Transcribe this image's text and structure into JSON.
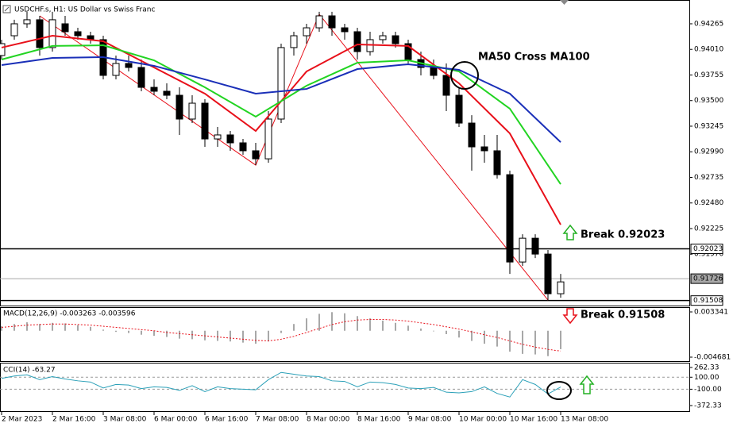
{
  "title": "USDCHF.s, H1:  US Dollar vs Swiss Franc",
  "annotations": [
    "MA50 Cross MA100",
    "Break 0.92023",
    "Break 0.91508"
  ],
  "chart_data": [
    {
      "type": "candlestick",
      "categories": [
        "2 Mar 2023",
        null,
        null,
        null,
        "2 Mar 16:00",
        null,
        null,
        null,
        "3 Mar 08:00",
        null,
        null,
        null,
        "6 Mar 00:00",
        null,
        null,
        null,
        "6 Mar 16:00",
        null,
        null,
        null,
        "7 Mar 08:00",
        null,
        null,
        null,
        "8 Mar 00:00",
        null,
        null,
        null,
        "8 Mar 16:00",
        null,
        null,
        null,
        "9 Mar 08:00",
        null,
        null,
        null,
        "10 Mar 00:00",
        null,
        null,
        null,
        "10 Mar 16:00",
        null,
        null,
        null,
        "13 Mar 08:00"
      ],
      "ohlc": [
        [
          0.93949,
          0.94107,
          0.93909,
          0.94067
        ],
        [
          0.94146,
          0.94305,
          0.94107,
          0.94265
        ],
        [
          0.94265,
          0.94384,
          0.94225,
          0.94305
        ],
        [
          0.94305,
          0.94344,
          0.93949,
          0.94028
        ],
        [
          0.94028,
          0.94384,
          0.93988,
          0.94305
        ],
        [
          0.94265,
          0.94344,
          0.94146,
          0.94186
        ],
        [
          0.94186,
          0.94225,
          0.94107,
          0.94146
        ],
        [
          0.94146,
          0.94186,
          0.94067,
          0.94107
        ],
        [
          0.94107,
          0.94146,
          0.93711,
          0.93751
        ],
        [
          0.93751,
          0.93949,
          0.93711,
          0.9387
        ],
        [
          0.9387,
          0.93949,
          0.9379,
          0.9383
        ],
        [
          0.9383,
          0.93909,
          0.93593,
          0.93632
        ],
        [
          0.93632,
          0.93711,
          0.93553,
          0.93593
        ],
        [
          0.93593,
          0.93672,
          0.93514,
          0.93553
        ],
        [
          0.93553,
          0.93632,
          0.93158,
          0.93316
        ],
        [
          0.93316,
          0.93553,
          0.93276,
          0.93474
        ],
        [
          0.93474,
          0.93514,
          0.93039,
          0.93118
        ],
        [
          0.93118,
          0.93237,
          0.93039,
          0.93158
        ],
        [
          0.93158,
          0.93197,
          0.93,
          0.93079
        ],
        [
          0.93079,
          0.93118,
          0.9296,
          0.93
        ],
        [
          0.93,
          0.93079,
          0.92857,
          0.9292
        ],
        [
          0.9292,
          0.93395,
          0.92881,
          0.93316
        ],
        [
          0.93316,
          0.94067,
          0.93276,
          0.94028
        ],
        [
          0.94028,
          0.94186,
          0.93949,
          0.94146
        ],
        [
          0.94146,
          0.94265,
          0.94067,
          0.94225
        ],
        [
          0.94225,
          0.94384,
          0.94186,
          0.94344
        ],
        [
          0.94344,
          0.94384,
          0.94146,
          0.94225
        ],
        [
          0.94225,
          0.94265,
          0.94107,
          0.94186
        ],
        [
          0.94186,
          0.94225,
          0.93909,
          0.93988
        ],
        [
          0.93988,
          0.94186,
          0.93949,
          0.94107
        ],
        [
          0.94107,
          0.94186,
          0.94067,
          0.94146
        ],
        [
          0.94146,
          0.94186,
          0.94028,
          0.94067
        ],
        [
          0.94067,
          0.94107,
          0.9387,
          0.93909
        ],
        [
          0.93909,
          0.93988,
          0.93751,
          0.9383
        ],
        [
          0.9383,
          0.93909,
          0.93711,
          0.93751
        ],
        [
          0.93751,
          0.9387,
          0.93395,
          0.93553
        ],
        [
          0.93553,
          0.93632,
          0.93237,
          0.93276
        ],
        [
          0.93276,
          0.93355,
          0.92802,
          0.93039
        ],
        [
          0.93039,
          0.93158,
          0.92881,
          0.93
        ],
        [
          0.93,
          0.93158,
          0.92723,
          0.92762
        ],
        [
          0.92762,
          0.92802,
          0.91773,
          0.91892
        ],
        [
          0.91892,
          0.92169,
          0.91852,
          0.92129
        ],
        [
          0.92129,
          0.92169,
          0.91931,
          0.91971
        ],
        [
          0.91971,
          0.92011,
          0.91513,
          0.91576
        ],
        [
          0.91576,
          0.91773,
          0.91536,
          0.91694
        ]
      ],
      "up_color": "#ffffff",
      "down_color": "#000000",
      "outline_color": "#000000",
      "lines": [
        {
          "color": "#e8101a",
          "x": [
            0,
            4,
            8,
            12,
            16,
            20,
            24,
            28,
            32,
            36,
            40,
            44
          ],
          "values": [
            0.94028,
            0.94146,
            0.94091,
            0.9383,
            0.93569,
            0.93197,
            0.9379,
            0.94059,
            0.94044,
            0.93672,
            0.93173,
            0.92264
          ]
        },
        {
          "color": "#22d422",
          "x": [
            0,
            4,
            8,
            12,
            16,
            20,
            24,
            28,
            32,
            36,
            40,
            44
          ],
          "values": [
            0.93909,
            0.94044,
            0.94051,
            0.93901,
            0.93632,
            0.9334,
            0.93648,
            0.93877,
            0.93901,
            0.9379,
            0.93419,
            0.92667
          ]
        },
        {
          "color": "#1a2fb8",
          "x": [
            0,
            4,
            8,
            12,
            16,
            20,
            24,
            28,
            32,
            36,
            40,
            44
          ],
          "values": [
            0.93854,
            0.93925,
            0.93933,
            0.93846,
            0.93711,
            0.93569,
            0.93616,
            0.93814,
            0.93862,
            0.93806,
            0.93569,
            0.93086
          ]
        }
      ],
      "trendline": {
        "color": "#e8101a",
        "x": [
          3,
          20,
          25,
          43
        ],
        "values": [
          0.94344,
          0.92857,
          0.9436,
          0.91513
        ]
      },
      "hlines": [
        {
          "value": 0.92023,
          "color": "#000000"
        },
        {
          "value": 0.91726,
          "color": "#a8a8a8"
        },
        {
          "value": 0.91508,
          "color": "#000000"
        }
      ],
      "ylim": [
        0.91458,
        0.94502
      ],
      "yticks": [
        0.94265,
        {
          "value": 0.9401,
          "label": "0.94010"
        },
        0.93755,
        {
          "value": 0.935,
          "label": "0.93500"
        },
        0.93245,
        {
          "value": 0.9299,
          "label": "0.92990"
        },
        0.92735,
        {
          "value": 0.9248,
          "label": "0.92480"
        },
        0.92225,
        {
          "value": 0.9197,
          "label": "0.91970"
        }
      ]
    },
    {
      "type": "macd",
      "label": "MACD(12,26,9) -0.003263 -0.003596",
      "values": [
        0.0008,
        0.0012,
        0.0015,
        0.0012,
        0.0014,
        0.0013,
        0.001,
        0.0007,
        0.0002,
        -0.0002,
        -0.0004,
        -0.0007,
        -0.0009,
        -0.0011,
        -0.0014,
        -0.0015,
        -0.0017,
        -0.0018,
        -0.0019,
        -0.0021,
        -0.0023,
        -0.0019,
        -0.0004,
        0.0012,
        0.0022,
        0.003,
        0.0033,
        0.0031,
        0.0026,
        0.0022,
        0.0018,
        0.0014,
        0.0009,
        0.0004,
        -0.0001,
        -0.0006,
        -0.0012,
        -0.0018,
        -0.0023,
        -0.0028,
        -0.0037,
        -0.0041,
        -0.0042,
        -0.0045,
        -0.003263
      ],
      "signal": [
        0.0006,
        0.0008,
        0.001,
        0.0011,
        0.0012,
        0.0012,
        0.0011,
        0.001,
        0.0008,
        0.0006,
        0.0004,
        0.0002,
        0,
        -0.0003,
        -0.0005,
        -0.0007,
        -0.0009,
        -0.0011,
        -0.0013,
        -0.0015,
        -0.0017,
        -0.0018,
        -0.0015,
        -0.001,
        -0.0003,
        0.0004,
        0.0011,
        0.0016,
        0.0019,
        0.002,
        0.002,
        0.0019,
        0.0017,
        0.0014,
        0.0011,
        0.0007,
        0.0003,
        -0.0002,
        -0.0007,
        -0.0012,
        -0.0018,
        -0.0024,
        -0.0029,
        -0.0033,
        -0.003596
      ],
      "color": "#a8a8a8",
      "signal_color": "#e8101a",
      "ylim": [
        -0.005385,
        0.004185
      ],
      "yticks": [
        0.003341,
        -0.004681
      ]
    },
    {
      "type": "cci",
      "label": "CCI(14) -63.27",
      "values": [
        80,
        120,
        140,
        60,
        110,
        70,
        40,
        20,
        -80,
        -20,
        -30,
        -90,
        -60,
        -70,
        -120,
        -40,
        -140,
        -60,
        -90,
        -100,
        -110,
        60,
        180,
        150,
        120,
        110,
        40,
        30,
        -60,
        20,
        10,
        -20,
        -80,
        -90,
        -70,
        -150,
        -160,
        -140,
        -60,
        -170,
        -230,
        60,
        -20,
        -180,
        -63.27
      ],
      "color": "#2aa0b8",
      "levels": [
        100,
        -100
      ],
      "ylim": [
        -464.9,
        328.4
      ],
      "yticks": [
        262.33,
        {
          "value": 100,
          "label": "100.00"
        },
        {
          "value": -100,
          "label": "-100.00"
        },
        -372.33
      ]
    }
  ]
}
